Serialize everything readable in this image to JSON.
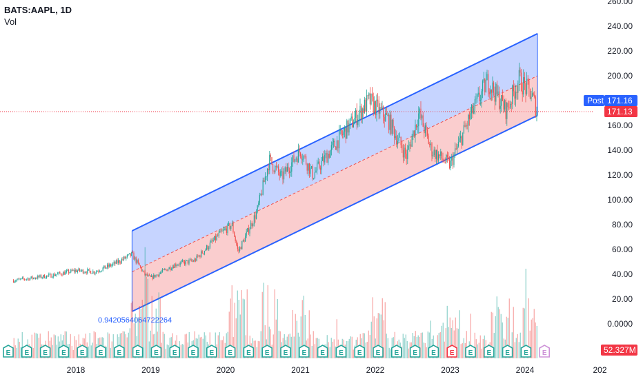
{
  "header": {
    "symbol": "BATS:AAPL, 1D",
    "volume_label": "Vol"
  },
  "channel": {
    "label": "0.9420564064722264"
  },
  "price_badges": {
    "post_label": "Post",
    "post_price": "171.16",
    "last_price": "171.13",
    "volume_value": "52.327M"
  },
  "colors": {
    "up": "#26a69a",
    "down": "#ef5350",
    "channel_line": "#2962ff",
    "channel_upper_fill": "#bcccff",
    "channel_lower_fill": "#f9c4c6",
    "post_badge": "#2962ff",
    "last_badge": "#f23645"
  },
  "event_marker_letter": "E",
  "chart_data": {
    "type": "candlestick",
    "title": "BATS:AAPL, 1D",
    "y_axis": {
      "ylim": [
        0,
        260
      ],
      "ticks": [
        "260.00",
        "240.00",
        "220.00",
        "200.00",
        "180.00",
        "160.00",
        "140.00",
        "120.00",
        "100.00",
        "80.00",
        "60.00",
        "40.00",
        "20.00",
        "0.0000"
      ]
    },
    "x_axis": {
      "ticks": [
        "2018",
        "2019",
        "2020",
        "2021",
        "2022",
        "2023",
        "2024",
        "202"
      ]
    },
    "price_path": [
      {
        "date": "2017-03",
        "price": 35
      },
      {
        "date": "2017-09",
        "price": 39
      },
      {
        "date": "2018-01",
        "price": 43
      },
      {
        "date": "2018-04",
        "price": 42
      },
      {
        "date": "2018-07",
        "price": 48
      },
      {
        "date": "2018-10",
        "price": 56
      },
      {
        "date": "2018-12",
        "price": 40
      },
      {
        "date": "2019-01",
        "price": 37
      },
      {
        "date": "2019-05",
        "price": 48
      },
      {
        "date": "2019-08",
        "price": 51
      },
      {
        "date": "2019-12",
        "price": 72
      },
      {
        "date": "2020-02",
        "price": 80
      },
      {
        "date": "2020-03",
        "price": 58
      },
      {
        "date": "2020-06",
        "price": 90
      },
      {
        "date": "2020-08",
        "price": 132
      },
      {
        "date": "2020-10",
        "price": 118
      },
      {
        "date": "2021-01",
        "price": 140
      },
      {
        "date": "2021-03",
        "price": 120
      },
      {
        "date": "2021-07",
        "price": 148
      },
      {
        "date": "2021-12",
        "price": 180
      },
      {
        "date": "2022-03",
        "price": 165
      },
      {
        "date": "2022-06",
        "price": 135
      },
      {
        "date": "2022-08",
        "price": 170
      },
      {
        "date": "2022-10",
        "price": 140
      },
      {
        "date": "2023-01",
        "price": 128
      },
      {
        "date": "2023-04",
        "price": 165
      },
      {
        "date": "2023-07",
        "price": 196
      },
      {
        "date": "2023-10",
        "price": 172
      },
      {
        "date": "2023-12",
        "price": 197
      },
      {
        "date": "2024-02",
        "price": 185
      },
      {
        "date": "2024-03",
        "price": 171
      }
    ],
    "channel": {
      "start_date": "2018-10",
      "end_date": "2024-03",
      "upper": [
        75,
        234
      ],
      "middle": [
        42,
        200
      ],
      "lower": [
        10,
        168
      ]
    },
    "last_price": 171.13,
    "post_price": 171.16,
    "last_volume": "52.327M"
  }
}
